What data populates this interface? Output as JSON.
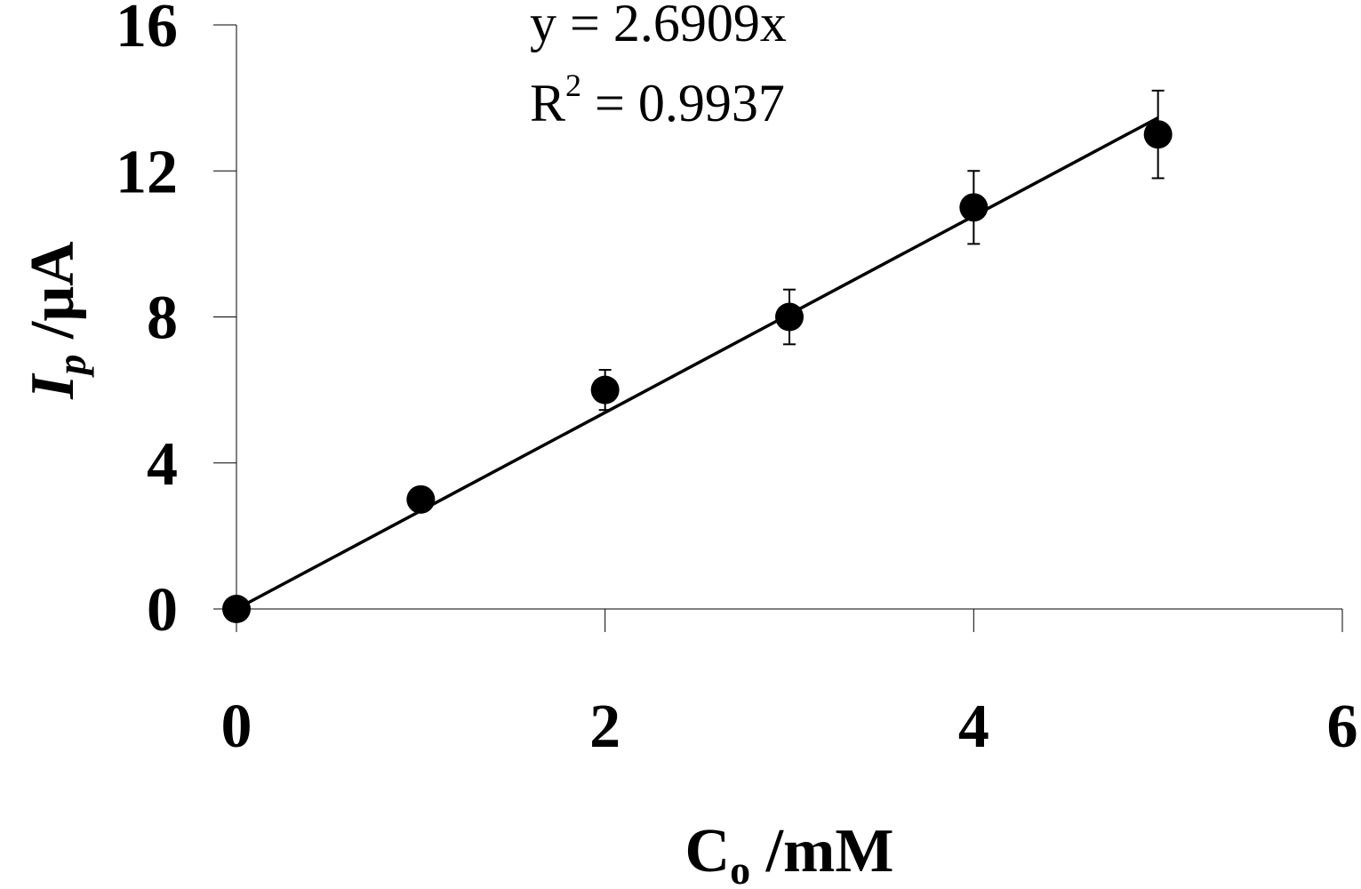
{
  "chart_data": {
    "type": "scatter",
    "xlabel": {
      "main": "C",
      "sub": "o",
      "rest": " /mM"
    },
    "ylabel": {
      "main": "I",
      "sub": "p",
      "rest": " /μA"
    },
    "xlim": [
      0,
      6
    ],
    "ylim": [
      0,
      16
    ],
    "x_ticks": [
      0,
      2,
      4,
      6
    ],
    "x_tick_labels": [
      "0",
      "2",
      "4",
      "6"
    ],
    "y_ticks": [
      0,
      4,
      8,
      12,
      16
    ],
    "y_tick_labels": [
      "0",
      "4",
      "8",
      "12",
      "16"
    ],
    "series": [
      {
        "x": [
          0,
          1,
          2,
          3,
          4,
          5
        ],
        "y": [
          0,
          3.0,
          6.0,
          8.0,
          11.0,
          13.0
        ],
        "error": [
          0,
          0,
          0.55,
          0.75,
          1.0,
          1.2
        ],
        "color": "#000000"
      }
    ],
    "trendline": {
      "slope": 2.6909,
      "intercept": 0,
      "x_range": [
        0,
        5
      ],
      "equation_label": "y = 2.6909x",
      "r2_label": {
        "main": "R",
        "sup": "2",
        "rest": " = 0.9937"
      }
    },
    "grid": false,
    "legend": "none"
  }
}
